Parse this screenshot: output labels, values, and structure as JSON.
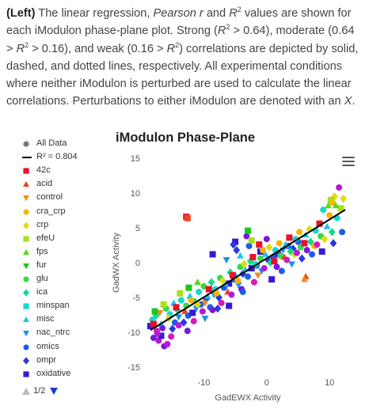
{
  "caption": {
    "lead": "(Left)",
    "t1": " The linear regression, ",
    "t2": "Pearson r",
    "t3": " and ",
    "t4": "R",
    "t5": "2",
    "t6": " values are shown for each iModulon phase-plane plot. Strong (",
    "t7": "R",
    "t8": "2",
    "t9": " > 0.64), moderate (0.64 > ",
    "t10": "R",
    "t11": "2",
    "t12": " > 0.16), and weak (0.16 > ",
    "t13": "R",
    "t14": "2",
    "t15": ") correlations are depicted by solid, dashed, and dotted lines, respectively. All experimental conditions where neither iModulon is perturbed are used to calculate the linear correlations. Perturbations to either iModulon are denoted with an ",
    "t16": "X",
    "t17": "."
  },
  "menu_icon": "hamburger-menu-icon",
  "legend": {
    "items": [
      {
        "label": "All Data",
        "symbol": "circle",
        "color": "#777777"
      },
      {
        "label": "R² = 0.804",
        "symbol": "line",
        "color": "#000000"
      },
      {
        "label": "42c",
        "symbol": "square",
        "color": "#e8102c"
      },
      {
        "label": "acid",
        "symbol": "triangle",
        "color": "#e8461c"
      },
      {
        "label": "control",
        "symbol": "triangle-down",
        "color": "#f08c1a"
      },
      {
        "label": "cra_crp",
        "symbol": "circle",
        "color": "#f5b400"
      },
      {
        "label": "crp",
        "symbol": "diamond",
        "color": "#e0dc10"
      },
      {
        "label": "efeU",
        "symbol": "square",
        "color": "#a8e01a"
      },
      {
        "label": "fps",
        "symbol": "triangle",
        "color": "#5ad818"
      },
      {
        "label": "fur",
        "symbol": "triangle-down",
        "color": "#18c818"
      },
      {
        "label": "glu",
        "symbol": "circle",
        "color": "#38d848"
      },
      {
        "label": "ica",
        "symbol": "diamond",
        "color": "#18d88c"
      },
      {
        "label": "minspan",
        "symbol": "square",
        "color": "#18d8cc"
      },
      {
        "label": "misc",
        "symbol": "triangle",
        "color": "#18c8e8"
      },
      {
        "label": "nac_ntrc",
        "symbol": "triangle-down",
        "color": "#1890e8"
      },
      {
        "label": "omics",
        "symbol": "circle",
        "color": "#1c5ce8"
      },
      {
        "label": "ompr",
        "symbol": "diamond",
        "color": "#2838e0"
      },
      {
        "label": "oxidative",
        "symbol": "square",
        "color": "#3818d8"
      }
    ],
    "page": "1/2",
    "prev_icon": "page-up-arrow-icon",
    "next_icon": "page-down-arrow-icon"
  },
  "chart_data": {
    "type": "scatter",
    "title": "iModulon Phase-Plane",
    "xlabel": "GadEWX Activity",
    "ylabel": "GadWX Activity",
    "xlim": [
      -19,
      13
    ],
    "ylim": [
      -15,
      15
    ],
    "xticks": [
      -10,
      0,
      10
    ],
    "yticks": [
      15,
      10,
      5,
      0,
      -5,
      -10,
      -15
    ],
    "grid": false,
    "legend_position": "left",
    "regression": {
      "label": "R² = 0.804",
      "x": [
        -18.5,
        12.5
      ],
      "y": [
        -9.7,
        7.6
      ]
    },
    "palette": [
      "#e8102c",
      "#e8461c",
      "#f08c1a",
      "#f5b400",
      "#e0dc10",
      "#a8e01a",
      "#5ad818",
      "#18c818",
      "#38d848",
      "#18d88c",
      "#18d8cc",
      "#18c8e8",
      "#1890e8",
      "#1c5ce8",
      "#2838e0",
      "#3818d8",
      "#7818d8",
      "#b818d8",
      "#d818b8"
    ],
    "points": [
      [
        -12.8,
        6.6,
        0,
        "square"
      ],
      [
        -12.6,
        6.4,
        1,
        "square"
      ],
      [
        11.5,
        10.8,
        17,
        "circle"
      ],
      [
        10.8,
        9.5,
        4,
        "diamond"
      ],
      [
        10.2,
        9.0,
        5,
        "square"
      ],
      [
        10.5,
        8.6,
        3,
        "circle"
      ],
      [
        9.8,
        8.2,
        6,
        "triangle"
      ],
      [
        9.0,
        7.6,
        10,
        "circle"
      ],
      [
        6.2,
        -2.0,
        1,
        "triangle"
      ],
      [
        6.0,
        -2.4,
        2,
        "triangle"
      ],
      [
        -18.5,
        -9.1,
        15,
        "square"
      ],
      [
        -18.0,
        -10.8,
        16,
        "circle"
      ],
      [
        -17.2,
        -11.2,
        17,
        "circle"
      ],
      [
        -16.3,
        -12.0,
        16,
        "circle"
      ],
      [
        -15.8,
        -11.7,
        17,
        "circle"
      ],
      [
        -17.5,
        -9.8,
        18,
        "circle"
      ],
      [
        -16.8,
        -10.5,
        15,
        "square"
      ],
      [
        -15.0,
        -9.5,
        14,
        "diamond"
      ],
      [
        -14.6,
        -8.6,
        13,
        "circle"
      ],
      [
        -14.0,
        -7.8,
        12,
        "triangle-down"
      ],
      [
        -13.2,
        -8.6,
        14,
        "diamond"
      ],
      [
        -12.5,
        -7.6,
        13,
        "circle"
      ],
      [
        -11.8,
        -7.2,
        15,
        "square"
      ],
      [
        -11.2,
        -6.6,
        12,
        "triangle-down"
      ],
      [
        -10.5,
        -6.0,
        13,
        "circle"
      ],
      [
        -9.6,
        -5.2,
        14,
        "diamond"
      ],
      [
        -9.0,
        -6.4,
        13,
        "circle"
      ],
      [
        -8.4,
        -4.6,
        12,
        "triangle-down"
      ],
      [
        -7.6,
        -5.0,
        14,
        "diamond"
      ],
      [
        -6.8,
        -3.6,
        13,
        "circle"
      ],
      [
        -6.0,
        -3.0,
        15,
        "square"
      ],
      [
        -5.2,
        -2.4,
        13,
        "circle"
      ],
      [
        -4.5,
        -3.2,
        12,
        "triangle-down"
      ],
      [
        -3.8,
        -1.6,
        14,
        "diamond"
      ],
      [
        -3.0,
        -2.0,
        13,
        "circle"
      ],
      [
        -2.4,
        -0.8,
        15,
        "square"
      ],
      [
        -1.6,
        -0.4,
        13,
        "circle"
      ],
      [
        -0.8,
        -1.2,
        12,
        "triangle-down"
      ],
      [
        0.2,
        0.4,
        14,
        "diamond"
      ],
      [
        1.0,
        0.8,
        13,
        "circle"
      ],
      [
        1.8,
        1.2,
        15,
        "square"
      ],
      [
        2.6,
        1.8,
        12,
        "triangle-down"
      ],
      [
        3.4,
        2.4,
        13,
        "circle"
      ],
      [
        4.2,
        2.0,
        14,
        "diamond"
      ],
      [
        5.0,
        3.0,
        13,
        "circle"
      ],
      [
        -5.0,
        3.0,
        15,
        "square"
      ],
      [
        -5.3,
        2.6,
        14,
        "diamond"
      ],
      [
        -3.2,
        3.8,
        16,
        "circle"
      ],
      [
        -2.8,
        2.4,
        13,
        "circle"
      ],
      [
        -1.0,
        1.6,
        15,
        "square"
      ],
      [
        -18.2,
        -8.2,
        10,
        "circle"
      ],
      [
        -17.6,
        -7.6,
        9,
        "diamond"
      ],
      [
        -16.8,
        -8.8,
        11,
        "triangle"
      ],
      [
        -16.0,
        -6.6,
        8,
        "circle"
      ],
      [
        -15.4,
        -7.4,
        10,
        "circle"
      ],
      [
        -14.8,
        -5.8,
        11,
        "triangle"
      ],
      [
        -14.2,
        -6.8,
        9,
        "diamond"
      ],
      [
        -13.6,
        -5.4,
        10,
        "circle"
      ],
      [
        -12.8,
        -6.2,
        8,
        "circle"
      ],
      [
        -12.2,
        -4.8,
        11,
        "triangle"
      ],
      [
        -11.4,
        -5.6,
        9,
        "diamond"
      ],
      [
        -10.8,
        -4.2,
        10,
        "circle"
      ],
      [
        -10.0,
        -3.4,
        8,
        "circle"
      ],
      [
        -9.4,
        -4.8,
        11,
        "triangle"
      ],
      [
        -8.8,
        -2.8,
        9,
        "diamond"
      ],
      [
        -8.2,
        -3.8,
        10,
        "circle"
      ],
      [
        -7.4,
        -2.2,
        8,
        "circle"
      ],
      [
        -6.6,
        -3.0,
        11,
        "triangle"
      ],
      [
        -5.8,
        -1.4,
        9,
        "diamond"
      ],
      [
        -5.0,
        -2.0,
        10,
        "circle"
      ],
      [
        -4.2,
        -0.6,
        8,
        "circle"
      ],
      [
        -3.4,
        -1.0,
        11,
        "triangle"
      ],
      [
        -2.6,
        0.2,
        9,
        "diamond"
      ],
      [
        -1.8,
        -0.2,
        10,
        "circle"
      ],
      [
        -1.0,
        0.6,
        8,
        "circle"
      ],
      [
        -0.2,
        1.2,
        11,
        "triangle"
      ],
      [
        0.6,
        0.0,
        9,
        "diamond"
      ],
      [
        1.4,
        1.8,
        10,
        "circle"
      ],
      [
        2.2,
        1.0,
        8,
        "circle"
      ],
      [
        3.0,
        2.6,
        11,
        "triangle"
      ],
      [
        3.8,
        1.6,
        9,
        "diamond"
      ],
      [
        4.6,
        3.4,
        10,
        "circle"
      ],
      [
        5.4,
        2.2,
        8,
        "circle"
      ],
      [
        6.2,
        4.0,
        11,
        "triangle"
      ],
      [
        7.0,
        3.0,
        9,
        "diamond"
      ],
      [
        7.8,
        4.6,
        10,
        "circle"
      ],
      [
        8.6,
        3.8,
        8,
        "circle"
      ],
      [
        9.6,
        5.2,
        11,
        "triangle"
      ],
      [
        10.4,
        4.4,
        9,
        "diamond"
      ],
      [
        11.2,
        6.4,
        10,
        "circle"
      ],
      [
        -18.0,
        -8.8,
        0,
        "square"
      ],
      [
        -17.0,
        -7.2,
        2,
        "triangle-down"
      ],
      [
        -15.6,
        -8.0,
        4,
        "diamond"
      ],
      [
        -14.4,
        -6.4,
        0,
        "square"
      ],
      [
        -13.0,
        -7.0,
        1,
        "triangle"
      ],
      [
        -12.0,
        -5.4,
        3,
        "circle"
      ],
      [
        -11.0,
        -6.0,
        4,
        "diamond"
      ],
      [
        -9.8,
        -5.8,
        2,
        "triangle-down"
      ],
      [
        -9.2,
        -3.8,
        0,
        "square"
      ],
      [
        -8.0,
        -4.4,
        3,
        "circle"
      ],
      [
        -7.0,
        -2.6,
        4,
        "diamond"
      ],
      [
        -6.2,
        -4.2,
        1,
        "triangle"
      ],
      [
        -5.4,
        -1.8,
        0,
        "square"
      ],
      [
        -4.6,
        -2.6,
        3,
        "circle"
      ],
      [
        -3.6,
        -0.2,
        4,
        "diamond"
      ],
      [
        -2.2,
        0.8,
        0,
        "square"
      ],
      [
        -1.4,
        -1.8,
        2,
        "triangle-down"
      ],
      [
        -0.6,
        1.8,
        3,
        "circle"
      ],
      [
        0.4,
        2.2,
        4,
        "diamond"
      ],
      [
        1.2,
        0.2,
        0,
        "square"
      ],
      [
        2.0,
        2.8,
        3,
        "circle"
      ],
      [
        2.8,
        0.8,
        1,
        "triangle"
      ],
      [
        3.6,
        3.6,
        0,
        "square"
      ],
      [
        4.4,
        1.2,
        4,
        "diamond"
      ],
      [
        5.2,
        4.4,
        3,
        "circle"
      ],
      [
        6.0,
        2.8,
        0,
        "square"
      ],
      [
        6.8,
        4.8,
        4,
        "diamond"
      ],
      [
        7.6,
        2.4,
        3,
        "circle"
      ],
      [
        8.4,
        5.6,
        0,
        "square"
      ],
      [
        9.2,
        3.4,
        4,
        "diamond"
      ],
      [
        10.0,
        6.8,
        3,
        "circle"
      ],
      [
        11.8,
        7.8,
        5,
        "square"
      ],
      [
        12.2,
        9.2,
        4,
        "diamond"
      ],
      [
        11.0,
        8.2,
        6,
        "triangle"
      ],
      [
        -17.4,
        -10.2,
        17,
        "circle"
      ],
      [
        -16.6,
        -9.4,
        16,
        "circle"
      ],
      [
        -15.2,
        -10.6,
        18,
        "circle"
      ],
      [
        -14.0,
        -9.0,
        17,
        "circle"
      ],
      [
        -12.6,
        -9.8,
        16,
        "circle"
      ],
      [
        -11.6,
        -8.4,
        18,
        "circle"
      ],
      [
        -10.2,
        -7.0,
        17,
        "circle"
      ],
      [
        -8.6,
        -6.8,
        16,
        "circle"
      ],
      [
        -7.2,
        -5.8,
        18,
        "circle"
      ],
      [
        -5.6,
        -4.6,
        17,
        "circle"
      ],
      [
        -4.0,
        -3.8,
        16,
        "circle"
      ],
      [
        -2.0,
        -2.8,
        18,
        "circle"
      ],
      [
        -0.4,
        -0.8,
        17,
        "circle"
      ],
      [
        1.6,
        -0.6,
        16,
        "circle"
      ],
      [
        3.2,
        0.4,
        18,
        "circle"
      ],
      [
        4.8,
        1.4,
        17,
        "circle"
      ],
      [
        6.4,
        1.8,
        16,
        "circle"
      ],
      [
        8.0,
        2.6,
        18,
        "circle"
      ],
      [
        -3.0,
        4.6,
        7,
        "square"
      ],
      [
        -2.4,
        3.2,
        5,
        "square"
      ],
      [
        -1.2,
        2.6,
        0,
        "square"
      ],
      [
        0.0,
        3.4,
        16,
        "circle"
      ],
      [
        -4.2,
        1.0,
        11,
        "triangle"
      ],
      [
        -6.4,
        0.4,
        12,
        "triangle-down"
      ],
      [
        -8.6,
        1.2,
        15,
        "square"
      ],
      [
        -4.8,
        1.8,
        14,
        "diamond"
      ],
      [
        -3.8,
        -4.2,
        13,
        "circle"
      ],
      [
        -6.0,
        -6.2,
        15,
        "square"
      ],
      [
        -7.8,
        -6.6,
        14,
        "diamond"
      ],
      [
        -9.8,
        -8.0,
        12,
        "triangle-down"
      ],
      [
        0.8,
        -2.4,
        15,
        "square"
      ],
      [
        2.4,
        -1.2,
        13,
        "circle"
      ],
      [
        4.0,
        -0.2,
        12,
        "triangle-down"
      ],
      [
        5.6,
        0.6,
        14,
        "diamond"
      ],
      [
        7.2,
        1.2,
        13,
        "circle"
      ],
      [
        8.8,
        1.6,
        15,
        "square"
      ],
      [
        10.6,
        2.8,
        14,
        "diamond"
      ],
      [
        12.0,
        4.4,
        13,
        "circle"
      ],
      [
        -13.8,
        -4.4,
        5,
        "square"
      ],
      [
        -12.4,
        -3.6,
        7,
        "square"
      ],
      [
        -11.0,
        -2.8,
        6,
        "triangle"
      ],
      [
        -16.4,
        -6.0,
        5,
        "square"
      ],
      [
        -17.8,
        -7.0,
        7,
        "square"
      ]
    ]
  }
}
